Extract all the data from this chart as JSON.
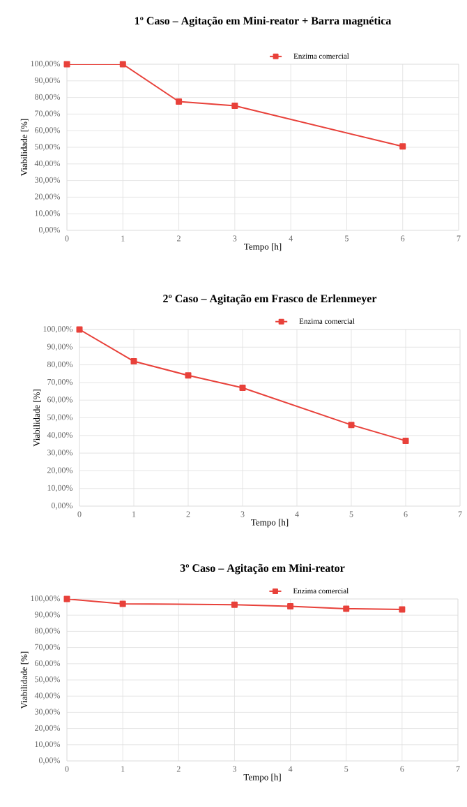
{
  "chart_data": [
    {
      "type": "line",
      "title": "1º Caso – Agitação em Mini-reator + Barra magnética",
      "xlabel": "Tempo [h]",
      "ylabel": "Viabilidade [%]",
      "x": [
        0,
        1,
        2,
        3,
        6
      ],
      "series": [
        {
          "name": "Enzima comercial",
          "color": "#e8413a",
          "values": [
            100,
            100,
            77.5,
            75,
            50.5
          ]
        }
      ],
      "xlim": [
        0,
        7
      ],
      "xticks": [
        0,
        1,
        2,
        3,
        4,
        5,
        6,
        7
      ],
      "ylim": [
        0,
        100
      ],
      "yticks": [
        {
          "value": 0,
          "label": "0,00%"
        },
        {
          "value": 10,
          "label": "10,00%"
        },
        {
          "value": 20,
          "label": "20,00%"
        },
        {
          "value": 30,
          "label": "30,00%"
        },
        {
          "value": 40,
          "label": "40,00%"
        },
        {
          "value": 50,
          "label": "50,00%"
        },
        {
          "value": 60,
          "label": "60,00%"
        },
        {
          "value": 70,
          "label": "70,00%"
        },
        {
          "value": 80,
          "label": "80,00%"
        },
        {
          "value": 90,
          "label": "90,00%"
        },
        {
          "value": 100,
          "label": "100,00%"
        }
      ],
      "grid": true,
      "legend": "top",
      "marker": "square",
      "line_style": "solid"
    },
    {
      "type": "line",
      "title": "2º Caso – Agitação em Frasco de Erlenmeyer",
      "xlabel": "Tempo [h]",
      "ylabel": "Viabilidade [%]",
      "x": [
        0,
        1,
        2,
        3,
        5,
        6
      ],
      "series": [
        {
          "name": "Enzima comercial",
          "color": "#e8413a",
          "values": [
            100,
            82,
            74,
            67,
            46,
            37
          ]
        }
      ],
      "xlim": [
        0,
        7
      ],
      "xticks": [
        0,
        1,
        2,
        3,
        4,
        5,
        6,
        7
      ],
      "ylim": [
        0,
        100
      ],
      "yticks": [
        {
          "value": 0,
          "label": "0,00%"
        },
        {
          "value": 10,
          "label": "10,00%"
        },
        {
          "value": 20,
          "label": "20,00%"
        },
        {
          "value": 30,
          "label": "30,00%"
        },
        {
          "value": 40,
          "label": "40,00%"
        },
        {
          "value": 50,
          "label": "50,00%"
        },
        {
          "value": 60,
          "label": "60,00%"
        },
        {
          "value": 70,
          "label": "70,00%"
        },
        {
          "value": 80,
          "label": "80,00%"
        },
        {
          "value": 90,
          "label": "90,00%"
        },
        {
          "value": 100,
          "label": "100,00%"
        }
      ],
      "grid": true,
      "legend": "top",
      "marker": "square",
      "line_style": "solid"
    },
    {
      "type": "line",
      "title": "3º Caso – Agitação em Mini-reator",
      "xlabel": "Tempo [h]",
      "ylabel": "Viabilidade [%]",
      "x": [
        0,
        1,
        3,
        4,
        5,
        6
      ],
      "series": [
        {
          "name": "Enzima comercial",
          "color": "#e8413a",
          "values": [
            100,
            97,
            96.5,
            95.5,
            94,
            93.5
          ]
        }
      ],
      "xlim": [
        0,
        7
      ],
      "xticks": [
        0,
        1,
        2,
        3,
        4,
        5,
        6,
        7
      ],
      "ylim": [
        0,
        100
      ],
      "yticks": [
        {
          "value": 0,
          "label": "0,00%"
        },
        {
          "value": 10,
          "label": "10,00%"
        },
        {
          "value": 20,
          "label": "20,00%"
        },
        {
          "value": 30,
          "label": "30,00%"
        },
        {
          "value": 40,
          "label": "40,00%"
        },
        {
          "value": 50,
          "label": "50,00%"
        },
        {
          "value": 60,
          "label": "60,00%"
        },
        {
          "value": 70,
          "label": "70,00%"
        },
        {
          "value": 80,
          "label": "80,00%"
        },
        {
          "value": 90,
          "label": "90,00%"
        },
        {
          "value": 100,
          "label": "100,00%"
        }
      ],
      "grid": true,
      "legend": "top",
      "marker": "square",
      "line_style": "solid"
    }
  ]
}
